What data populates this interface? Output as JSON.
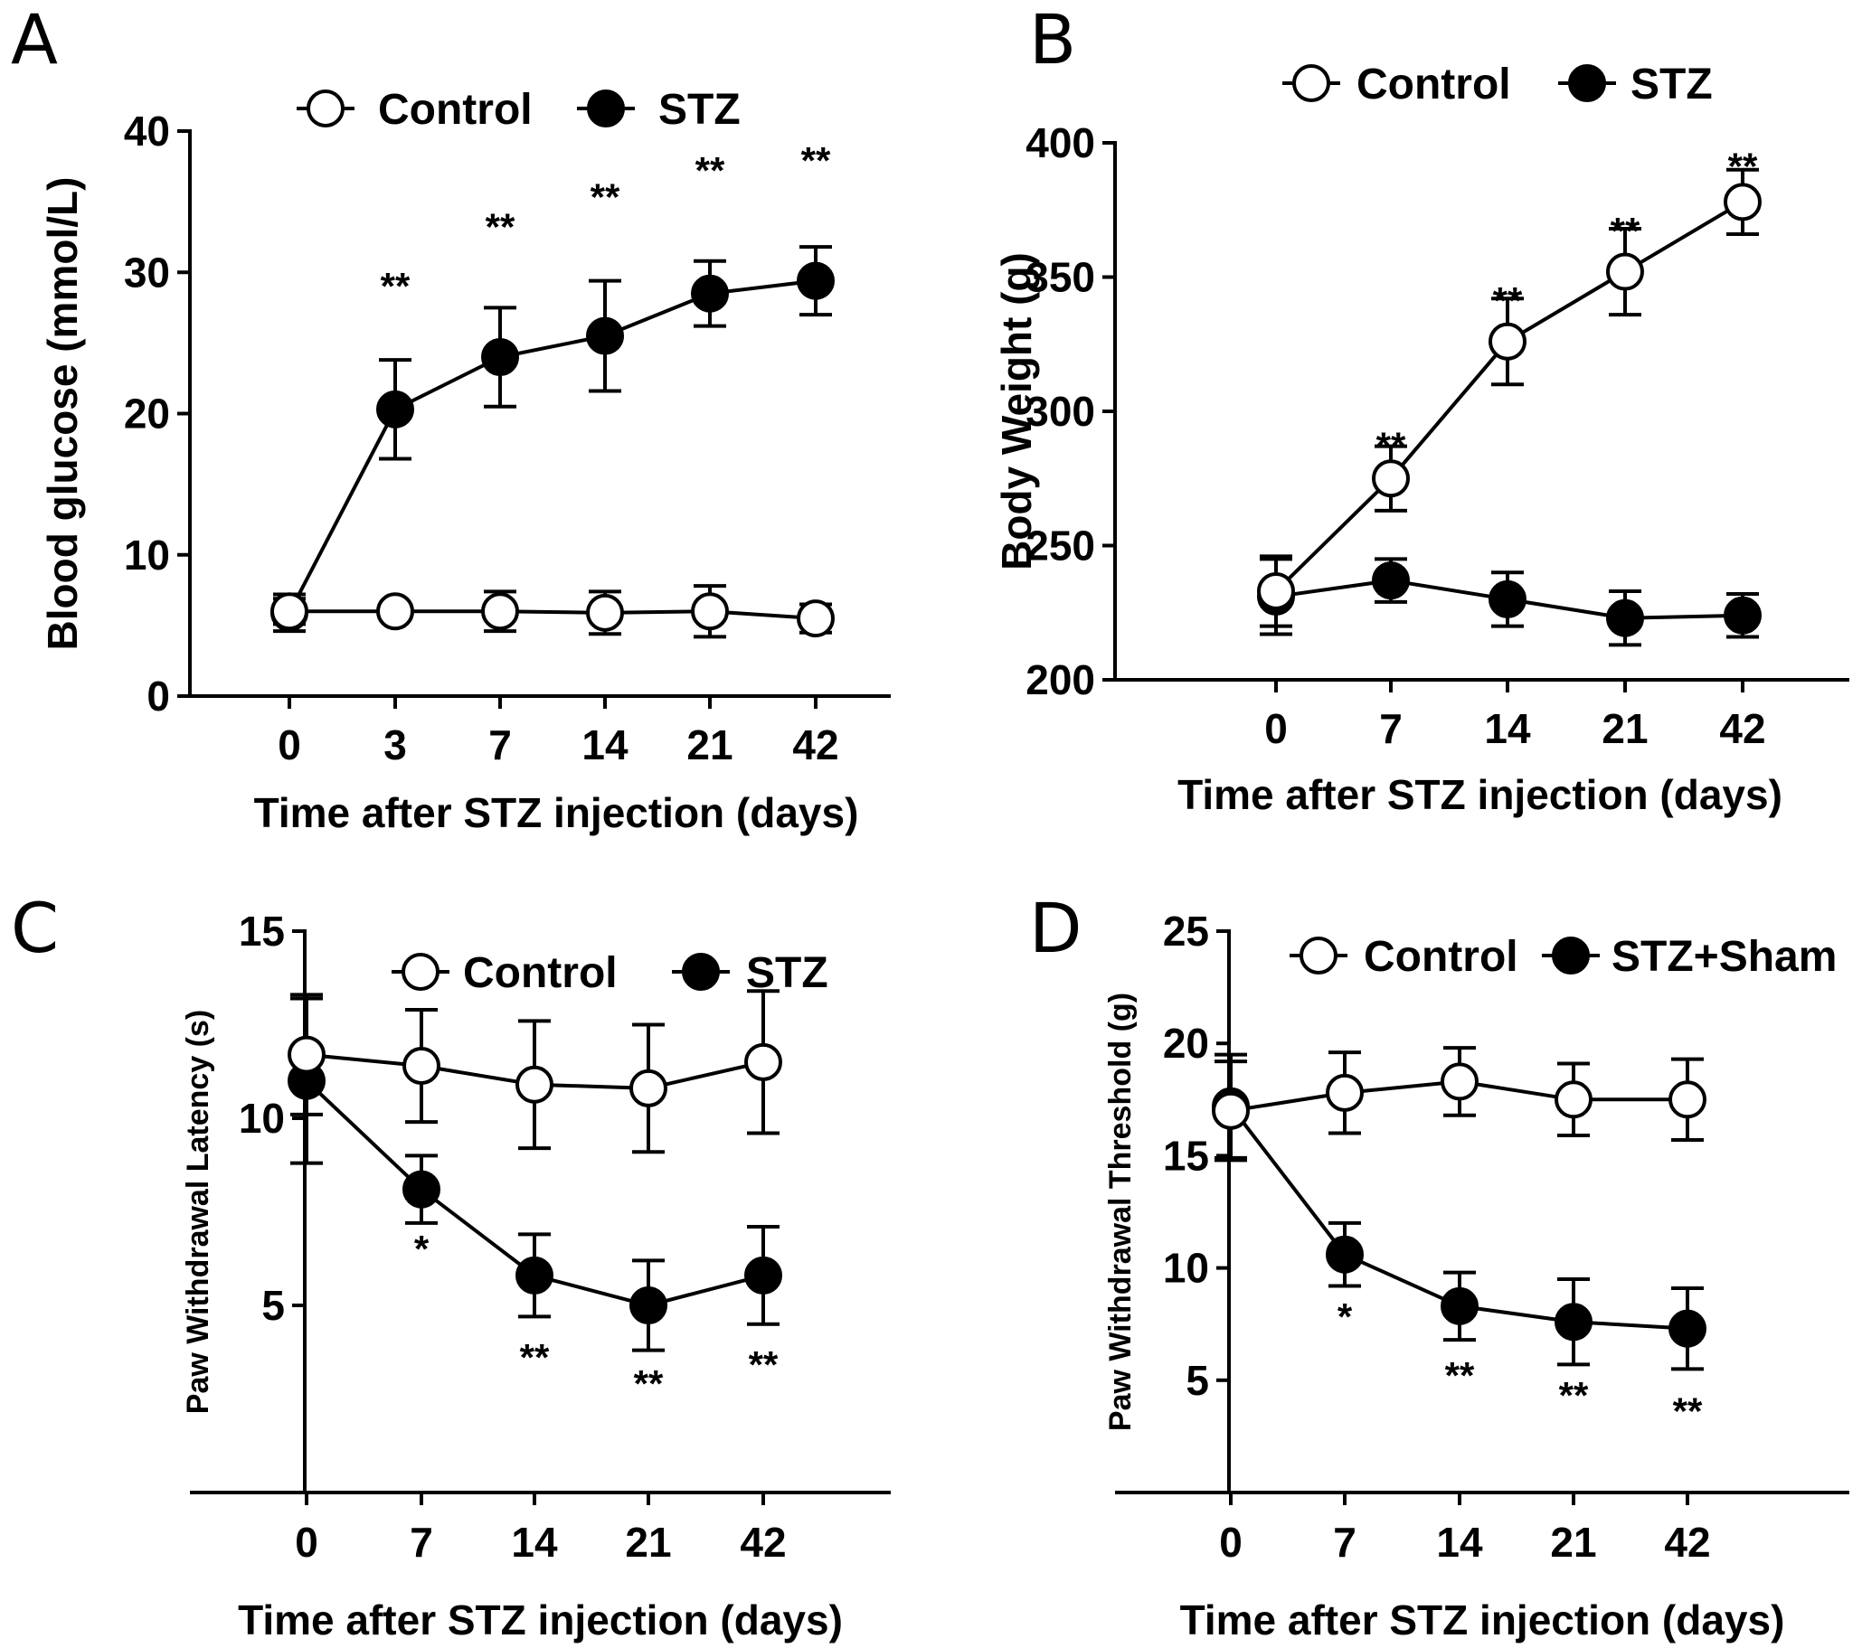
{
  "chart_data": [
    {
      "panel": "A",
      "type": "line",
      "categories": [
        "0",
        "3",
        "7",
        "14",
        "21",
        "42"
      ],
      "xlabel": "Time after STZ injection (days)",
      "ylabel": "Blood glucose (mmol/L)",
      "ylim": [
        0,
        40
      ],
      "yticks": [
        "0",
        "10",
        "20",
        "30",
        "40"
      ],
      "legend_position": "top",
      "series": [
        {
          "name": "Control",
          "marker": "open-circle",
          "values": [
            6.0,
            6.0,
            6.0,
            5.9,
            6.0,
            5.5
          ],
          "err": [
            0.9,
            0.3,
            1.4,
            1.5,
            1.8,
            1.0
          ]
        },
        {
          "name": "STZ",
          "marker": "filled-circle",
          "values": [
            5.9,
            20.3,
            24.0,
            25.5,
            28.5,
            29.4
          ],
          "err": [
            1.3,
            3.5,
            3.5,
            3.9,
            2.3,
            2.4
          ]
        }
      ],
      "annotations": [
        {
          "text": "**",
          "x": "3",
          "y": 29
        },
        {
          "text": "**",
          "x": "7",
          "y": 33.2
        },
        {
          "text": "**",
          "x": "14",
          "y": 35.3
        },
        {
          "text": "**",
          "x": "21",
          "y": 37.2
        },
        {
          "text": "**",
          "x": "42",
          "y": 37.9
        }
      ]
    },
    {
      "panel": "B",
      "type": "line",
      "categories": [
        "0",
        "7",
        "14",
        "21",
        "42"
      ],
      "xlabel": "Time after STZ injection (days)",
      "ylabel": "Body Weight (g)",
      "ylim": [
        200,
        400
      ],
      "yticks": [
        "200",
        "250",
        "300",
        "350",
        "400"
      ],
      "legend_position": "top",
      "series": [
        {
          "name": "Control",
          "marker": "open-circle",
          "values": [
            233,
            275,
            326,
            352,
            378
          ],
          "err": [
            13,
            12,
            16,
            16,
            12
          ]
        },
        {
          "name": "STZ",
          "marker": "filled-circle",
          "values": [
            231,
            237,
            230,
            223,
            224
          ],
          "err": [
            14,
            8,
            10,
            10,
            8
          ]
        }
      ],
      "annotations": [
        {
          "text": "**",
          "x": "7",
          "y": 287
        },
        {
          "text": "**",
          "x": "14",
          "y": 341
        },
        {
          "text": "**",
          "x": "21",
          "y": 367
        },
        {
          "text": "**",
          "x": "42",
          "y": 391
        }
      ]
    },
    {
      "panel": "C",
      "type": "line",
      "categories": [
        "0",
        "7",
        "14",
        "21",
        "42"
      ],
      "xlabel": "Time after STZ injection (days)",
      "ylabel": "Paw Withdrawal Latency (s)",
      "ylim": [
        0,
        15
      ],
      "yticks": [
        "5",
        "10",
        "15"
      ],
      "legend_position": "top",
      "series": [
        {
          "name": "Control",
          "marker": "open-circle",
          "values": [
            11.7,
            11.4,
            10.9,
            10.8,
            11.5
          ],
          "err": [
            1.6,
            1.5,
            1.7,
            1.7,
            1.9
          ]
        },
        {
          "name": "STZ",
          "marker": "filled-circle",
          "values": [
            11.0,
            8.1,
            5.8,
            5.0,
            5.8
          ],
          "err": [
            2.2,
            0.9,
            1.1,
            1.2,
            1.3
          ]
        }
      ],
      "annotations": [
        {
          "text": "*",
          "x": "7",
          "y": 6.5
        },
        {
          "text": "**",
          "x": "14",
          "y": 3.6
        },
        {
          "text": "**",
          "x": "21",
          "y": 2.9
        },
        {
          "text": "**",
          "x": "42",
          "y": 3.4
        }
      ]
    },
    {
      "panel": "D",
      "type": "line",
      "categories": [
        "0",
        "7",
        "14",
        "21",
        "42"
      ],
      "xlabel": "Time after STZ injection (days)",
      "ylabel": "Paw Withdrawal Threshold (g)",
      "ylim": [
        0,
        25
      ],
      "yticks": [
        "5",
        "10",
        "15",
        "20",
        "25"
      ],
      "legend_position": "top",
      "series": [
        {
          "name": "Control",
          "marker": "open-circle",
          "values": [
            17.0,
            17.8,
            18.3,
            17.5,
            17.5
          ],
          "err": [
            2.2,
            1.8,
            1.5,
            1.6,
            1.8
          ]
        },
        {
          "name": "STZ+Sham",
          "marker": "filled-circle",
          "values": [
            17.2,
            10.6,
            8.3,
            7.6,
            7.3
          ],
          "err": [
            2.3,
            1.4,
            1.5,
            1.9,
            1.8
          ]
        }
      ],
      "annotations": [
        {
          "text": "*",
          "x": "7",
          "y": 7.8
        },
        {
          "text": "**",
          "x": "14",
          "y": 5.2
        },
        {
          "text": "**",
          "x": "21",
          "y": 4.3
        },
        {
          "text": "**",
          "x": "42",
          "y": 3.6
        }
      ]
    }
  ]
}
